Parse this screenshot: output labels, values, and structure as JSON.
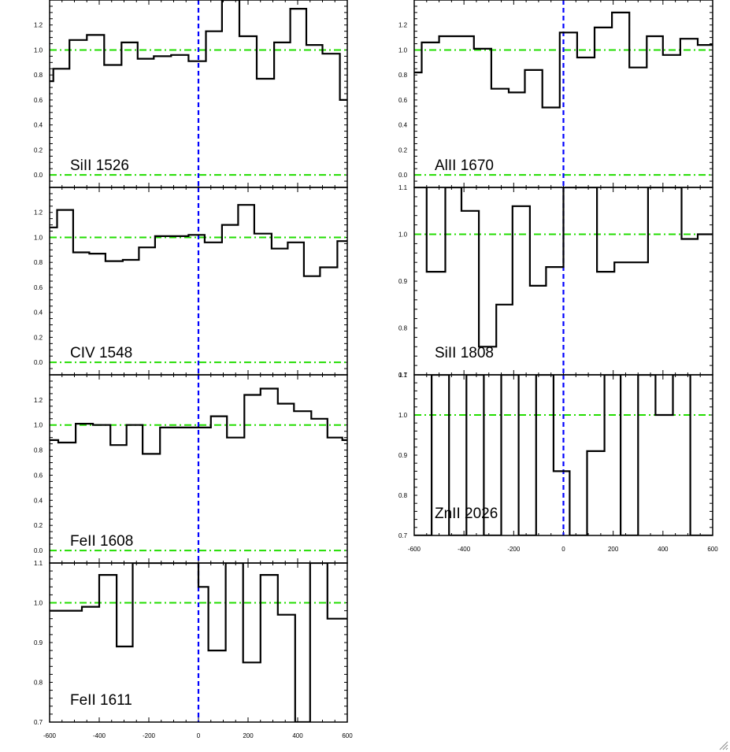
{
  "chart_data": [
    {
      "type": "line",
      "label": "SiII 1526",
      "xlim": [
        -600,
        600
      ],
      "ylim": [
        -0.1,
        1.4
      ],
      "yticks": [
        0.0,
        0.2,
        0.4,
        0.6,
        0.8,
        1.0,
        1.2
      ],
      "ytick_labels": [
        "0.0",
        "0.2",
        "0.4",
        "0.6",
        "0.8",
        "1.0",
        "1.2"
      ],
      "xticks": [],
      "xtick_labels": [],
      "continuum_levels": [
        1.0,
        0.0
      ],
      "step_x": [
        -600,
        -585,
        -520,
        -450,
        -380,
        -310,
        -245,
        -180,
        -110,
        -40,
        30,
        95,
        165,
        235,
        305,
        370,
        435,
        500,
        570,
        600
      ],
      "step_y": [
        0.75,
        0.85,
        1.08,
        1.12,
        0.88,
        1.06,
        0.93,
        0.95,
        0.96,
        0.91,
        1.15,
        1.48,
        1.11,
        0.77,
        1.06,
        1.33,
        1.04,
        0.97,
        0.6
      ],
      "colors": {
        "spectrum": "#000000",
        "continuum": "#22dd00",
        "zero_velocity": "#0000ff"
      }
    },
    {
      "type": "line",
      "label": "AlII 1670",
      "xlim": [
        -600,
        600
      ],
      "ylim": [
        -0.1,
        1.4
      ],
      "yticks": [
        0.0,
        0.2,
        0.4,
        0.6,
        0.8,
        1.0,
        1.2
      ],
      "ytick_labels": [
        "0.0",
        "0.2",
        "0.4",
        "0.6",
        "0.8",
        "1.0",
        "1.2"
      ],
      "xticks": [],
      "xtick_labels": [],
      "continuum_levels": [
        1.0,
        0.0
      ],
      "step_x": [
        -600,
        -570,
        -500,
        -430,
        -360,
        -290,
        -220,
        -155,
        -85,
        -15,
        55,
        125,
        195,
        265,
        335,
        400,
        470,
        540,
        600
      ],
      "step_y": [
        0.82,
        1.06,
        1.11,
        1.11,
        1.01,
        0.69,
        0.66,
        0.84,
        0.54,
        1.14,
        0.94,
        1.18,
        1.3,
        0.86,
        1.11,
        0.96,
        1.09,
        1.04
      ],
      "colors": {
        "spectrum": "#000000",
        "continuum": "#22dd00",
        "zero_velocity": "#0000ff"
      }
    },
    {
      "type": "line",
      "label": "CIV 1548",
      "xlim": [
        -600,
        600
      ],
      "ylim": [
        -0.1,
        1.4
      ],
      "yticks": [
        0.0,
        0.2,
        0.4,
        0.6,
        0.8,
        1.0,
        1.2
      ],
      "ytick_labels": [
        "0.0",
        "0.2",
        "0.4",
        "0.6",
        "0.8",
        "1.0",
        "1.2"
      ],
      "xticks": [],
      "xtick_labels": [],
      "continuum_levels": [
        1.0,
        0.0
      ],
      "step_x": [
        -600,
        -570,
        -505,
        -440,
        -375,
        -305,
        -240,
        -175,
        -110,
        -40,
        25,
        95,
        160,
        225,
        295,
        360,
        425,
        490,
        560,
        600
      ],
      "step_y": [
        1.08,
        1.22,
        0.88,
        0.87,
        0.81,
        0.82,
        0.92,
        1.01,
        1.01,
        1.02,
        0.96,
        1.1,
        1.26,
        1.03,
        0.91,
        0.96,
        0.69,
        0.76,
        0.97
      ],
      "colors": {
        "spectrum": "#000000",
        "continuum": "#22dd00",
        "zero_velocity": "#0000ff"
      }
    },
    {
      "type": "line",
      "label": "SiII 1808",
      "xlim": [
        -600,
        600
      ],
      "ylim": [
        0.7,
        1.1
      ],
      "yticks": [
        0.7,
        0.8,
        0.9,
        1.0,
        1.1
      ],
      "ytick_labels": [
        "0.7",
        "0.8",
        "0.9",
        "1.0",
        "1.1"
      ],
      "xticks": [],
      "xtick_labels": [],
      "continuum_levels": [
        1.0
      ],
      "step_x": [
        -600,
        -550,
        -475,
        -410,
        -340,
        -270,
        -205,
        -135,
        -70,
        0,
        65,
        135,
        205,
        270,
        340,
        405,
        475,
        540,
        600
      ],
      "step_y": [
        1.1,
        0.92,
        1.1,
        1.05,
        0.76,
        0.85,
        1.06,
        0.89,
        0.93,
        1.1,
        1.1,
        0.92,
        0.94,
        0.94,
        1.1,
        1.1,
        0.99,
        1.0
      ],
      "colors": {
        "spectrum": "#000000",
        "continuum": "#22dd00",
        "zero_velocity": "#0000ff"
      }
    },
    {
      "type": "line",
      "label": "FeII 1608",
      "xlim": [
        -600,
        600
      ],
      "ylim": [
        -0.1,
        1.4
      ],
      "yticks": [
        0.0,
        0.2,
        0.4,
        0.6,
        0.8,
        1.0,
        1.2
      ],
      "ytick_labels": [
        "0.0",
        "0.2",
        "0.4",
        "0.6",
        "0.8",
        "1.0",
        "1.2"
      ],
      "xticks": [],
      "xtick_labels": [],
      "continuum_levels": [
        1.0,
        0.0
      ],
      "step_x": [
        -600,
        -565,
        -495,
        -425,
        -355,
        -290,
        -225,
        -155,
        -90,
        -20,
        50,
        115,
        185,
        250,
        320,
        385,
        455,
        520,
        580,
        600
      ],
      "step_y": [
        0.88,
        0.86,
        1.01,
        1.0,
        0.84,
        1.0,
        0.77,
        0.98,
        0.98,
        0.98,
        1.07,
        0.9,
        1.24,
        1.29,
        1.17,
        1.11,
        1.05,
        0.9,
        0.88
      ],
      "colors": {
        "spectrum": "#000000",
        "continuum": "#22dd00",
        "zero_velocity": "#0000ff"
      }
    },
    {
      "type": "line",
      "label": "ZnII 2026",
      "xlim": [
        -600,
        600
      ],
      "ylim": [
        0.7,
        1.1
      ],
      "yticks": [
        0.7,
        0.8,
        0.9,
        1.0,
        1.1
      ],
      "ytick_labels": [
        "0.7",
        "0.8",
        "0.9",
        "1.0",
        "1.1"
      ],
      "xticks": [
        -600,
        -400,
        -200,
        0,
        200,
        400,
        600
      ],
      "xtick_labels": [
        "-600",
        "-400",
        "-200",
        "0",
        "200",
        "400",
        "600"
      ],
      "continuum_levels": [
        1.0
      ],
      "step_x": [
        -600,
        -530,
        -460,
        -390,
        -320,
        -250,
        -180,
        -110,
        -40,
        25,
        95,
        165,
        230,
        300,
        370,
        440,
        510,
        580,
        600
      ],
      "step_y": [
        0.7,
        1.1,
        0.7,
        1.1,
        0.7,
        1.1,
        0.7,
        1.1,
        0.86,
        0.7,
        0.91,
        1.1,
        0.7,
        1.1,
        1.0,
        1.1,
        0.7,
        0.7
      ],
      "colors": {
        "spectrum": "#000000",
        "continuum": "#22dd00",
        "zero_velocity": "#0000ff"
      }
    },
    {
      "type": "line",
      "label": "FeII 1611",
      "xlim": [
        -600,
        600
      ],
      "ylim": [
        0.7,
        1.1
      ],
      "yticks": [
        0.7,
        0.8,
        0.9,
        1.0,
        1.1
      ],
      "ytick_labels": [
        "0.7",
        "0.8",
        "0.9",
        "1.0",
        "1.1"
      ],
      "xticks": [
        -600,
        -400,
        -200,
        0,
        200,
        400,
        600
      ],
      "xtick_labels": [
        "-600",
        "-400",
        "-200",
        "0",
        "200",
        "400",
        "600"
      ],
      "continuum_levels": [
        1.0
      ],
      "step_x": [
        -600,
        -530,
        -470,
        -400,
        -330,
        -265,
        -200,
        -130,
        -60,
        0,
        40,
        110,
        180,
        250,
        320,
        390,
        450,
        520,
        600
      ],
      "step_y": [
        0.98,
        0.98,
        0.99,
        1.07,
        0.89,
        1.1,
        1.1,
        1.1,
        1.1,
        1.04,
        0.88,
        1.1,
        0.85,
        1.07,
        0.97,
        0.7,
        1.1,
        0.96
      ],
      "colors": {
        "spectrum": "#000000",
        "continuum": "#22dd00",
        "zero_velocity": "#0000ff"
      }
    }
  ]
}
